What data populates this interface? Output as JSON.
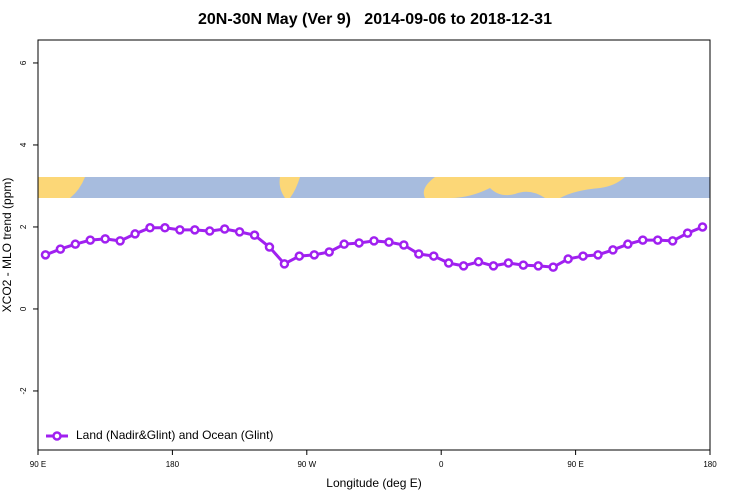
{
  "chart_data": {
    "type": "line",
    "title": "20N-30N May (Ver 9)   2014-09-06 to 2018-12-31",
    "x_label": "Longitude (deg E)",
    "y_label": "XCO2 - MLO trend (ppm)",
    "x": [
      95,
      105,
      115,
      125,
      135,
      145,
      155,
      165,
      175,
      185,
      195,
      205,
      215,
      225,
      235,
      245,
      255,
      265,
      275,
      285,
      295,
      305,
      315,
      325,
      335,
      345,
      355,
      365,
      375,
      385,
      395,
      405,
      415,
      425,
      435,
      445,
      455,
      465,
      475,
      485,
      495,
      505,
      515,
      525,
      535
    ],
    "series": [
      {
        "name": "Land (Nadir&Glint) and Ocean (Glint)",
        "color": "#a020f0",
        "values": [
          1.32,
          1.46,
          1.58,
          1.68,
          1.71,
          1.66,
          1.83,
          1.98,
          1.98,
          1.93,
          1.93,
          1.9,
          1.95,
          1.88,
          1.8,
          1.51,
          1.1,
          1.29,
          1.32,
          1.39,
          1.58,
          1.61,
          1.66,
          1.63,
          1.56,
          1.34,
          1.29,
          1.12,
          1.05,
          1.15,
          1.05,
          1.12,
          1.07,
          1.05,
          1.02,
          1.22,
          1.29,
          1.32,
          1.44,
          1.58,
          1.68,
          1.68,
          1.66,
          1.85,
          2.0
        ]
      }
    ],
    "xlim": [
      90,
      540
    ],
    "xticks": [
      {
        "value": 90,
        "label": "90 E"
      },
      {
        "value": 180,
        "label": "180"
      },
      {
        "value": 270,
        "label": "90 W"
      },
      {
        "value": 360,
        "label": "0"
      },
      {
        "value": 450,
        "label": "90 E"
      },
      {
        "value": 540,
        "label": "180"
      }
    ],
    "ylim": [
      -3.44,
      6.56
    ],
    "yticks": [
      -2,
      0,
      2,
      4,
      6
    ],
    "legend": "bottom-left"
  }
}
